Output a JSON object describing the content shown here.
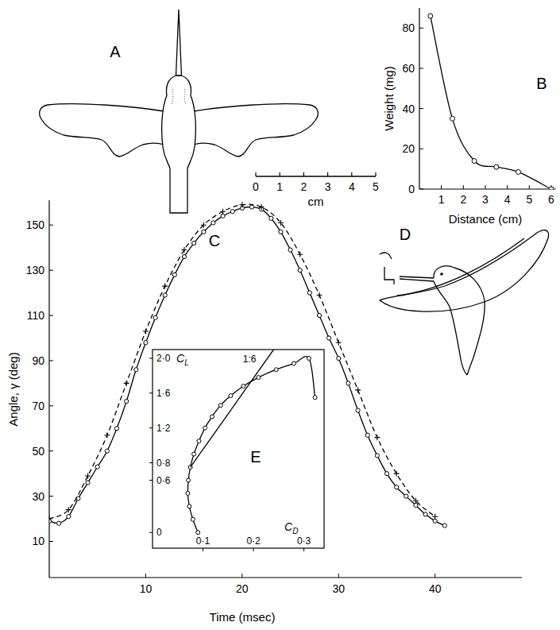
{
  "chart_data": [
    {
      "type": "diagram",
      "title": "A",
      "x_label": "cm",
      "xlim": [
        0,
        5
      ],
      "xticks": [
        0,
        1,
        2,
        3,
        4,
        5
      ]
    },
    {
      "type": "line",
      "title": "B",
      "x_label": "Distance (cm)",
      "y_label": "Weight (mg)",
      "x": [
        0.5,
        1.5,
        2.5,
        3.5,
        4.5,
        6
      ],
      "values": [
        86,
        35,
        14,
        11,
        8.5,
        0
      ],
      "marker": "circle",
      "line_style": "solid",
      "xlim": [
        0,
        6.2
      ],
      "xticks": [
        1,
        2,
        3,
        4,
        5,
        6
      ],
      "ylim": [
        0,
        90
      ],
      "yticks": [
        0,
        20,
        40,
        60,
        80
      ]
    },
    {
      "type": "line",
      "title": "C",
      "x_label": "Time (msec)",
      "y_label": "Angle, γ (deg)",
      "xlim": [
        0,
        49
      ],
      "xticks": [
        10,
        20,
        30,
        40
      ],
      "ylim": [
        -6,
        161
      ],
      "yticks": [
        10,
        30,
        50,
        70,
        90,
        110,
        130,
        150
      ],
      "series": [
        {
          "x": [
            0,
            1,
            2,
            3,
            4,
            5,
            6,
            7,
            8,
            9,
            10,
            11,
            12,
            13,
            14,
            15,
            16,
            17,
            18,
            19,
            20,
            21,
            22,
            23,
            24,
            25,
            26,
            27,
            28,
            29,
            30,
            31,
            32,
            33,
            34,
            35,
            36,
            37,
            38,
            39,
            40,
            41
          ],
          "values": [
            19,
            18,
            21,
            29,
            36,
            43,
            50,
            60,
            72,
            86,
            98,
            109,
            119,
            128,
            136,
            142,
            147,
            151,
            154,
            156,
            157.5,
            158,
            157,
            153,
            147,
            139,
            130,
            120,
            110,
            100,
            91,
            80,
            68,
            57,
            48,
            40,
            34,
            30,
            26,
            22,
            19,
            17
          ],
          "marker": "circle",
          "line_style": "solid"
        },
        {
          "x": [
            0,
            2,
            4,
            6,
            8,
            10,
            12,
            14,
            16,
            18,
            20,
            22,
            24,
            26,
            28,
            30,
            32,
            34,
            36,
            38,
            40
          ],
          "values": [
            20,
            24,
            39,
            57,
            80,
            103,
            123,
            139,
            150,
            156,
            159,
            158,
            151,
            137,
            119,
            98,
            77,
            56,
            40,
            28,
            21
          ],
          "marker": "plus",
          "line_style": "dashed"
        }
      ]
    },
    {
      "type": "diagram",
      "title": "D"
    },
    {
      "type": "line",
      "title": "E",
      "x_label": "CD",
      "y_label": "CL",
      "xlim": [
        0,
        0.34
      ],
      "xticks": [
        {
          "value": 0.1,
          "label": "0·1"
        },
        {
          "value": 0.2,
          "label": "0·2"
        },
        {
          "value": 0.3,
          "label": "0·3"
        }
      ],
      "ylim": [
        -0.18,
        2.1
      ],
      "yticks": [
        0,
        {
          "value": 0.6,
          "label": "0·6"
        },
        {
          "value": 0.8,
          "label": "0·8"
        },
        {
          "value": 1.2,
          "label": "1·2"
        },
        {
          "value": 1.6,
          "label": "1·6"
        },
        {
          "value": 2,
          "label": "2·0"
        }
      ],
      "series": [
        {
          "x": [
            0.09,
            0.08,
            0.073,
            0.07,
            0.071,
            0.075,
            0.082,
            0.092,
            0.104,
            0.118,
            0.135,
            0.155,
            0.18,
            0.21,
            0.245,
            0.28,
            0.31,
            0.322
          ],
          "values": [
            0,
            0.15,
            0.3,
            0.45,
            0.6,
            0.75,
            0.9,
            1.05,
            1.2,
            1.33,
            1.46,
            1.57,
            1.68,
            1.78,
            1.87,
            1.94,
            2.0,
            1.55
          ],
          "marker": "circle",
          "line_style": "solid"
        },
        {
          "label": "1:6",
          "x": [
            0.075,
            0.24
          ],
          "values": [
            0.75,
            2.1
          ],
          "marker": "none",
          "line_style": "solid"
        }
      ]
    }
  ]
}
